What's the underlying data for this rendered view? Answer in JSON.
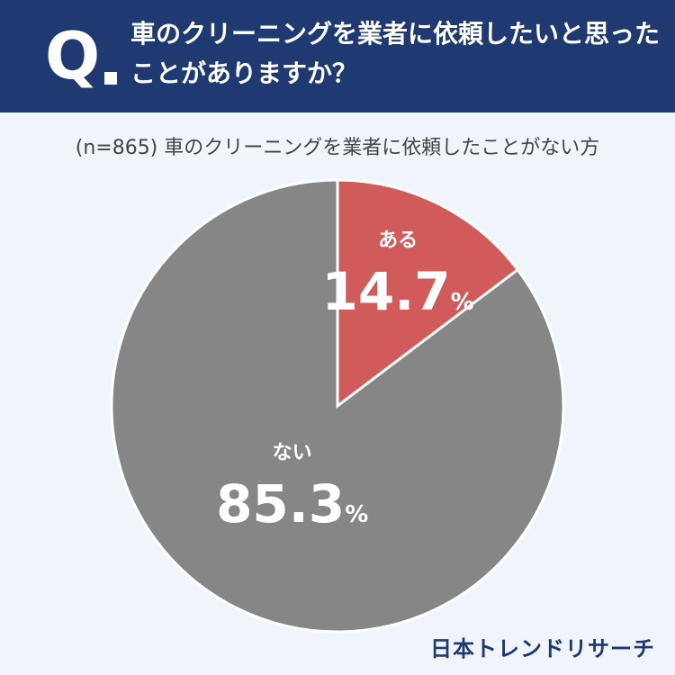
{
  "header": {
    "q_label": "Q",
    "question": "車のクリーニングを業者に依頼したいと思ったことがありますか？"
  },
  "subtitle": "(n=865) 車のクリーニングを業者に依頼したことがない方",
  "chart_data": {
    "type": "pie",
    "slices": [
      {
        "label": "ある",
        "value": 14.7,
        "value_text": "14.7",
        "unit": "%",
        "color": "#d15b5b"
      },
      {
        "label": "ない",
        "value": 85.3,
        "value_text": "85.3",
        "unit": "%",
        "color": "#868686"
      }
    ]
  },
  "brand": "日本トレンドリサーチ"
}
